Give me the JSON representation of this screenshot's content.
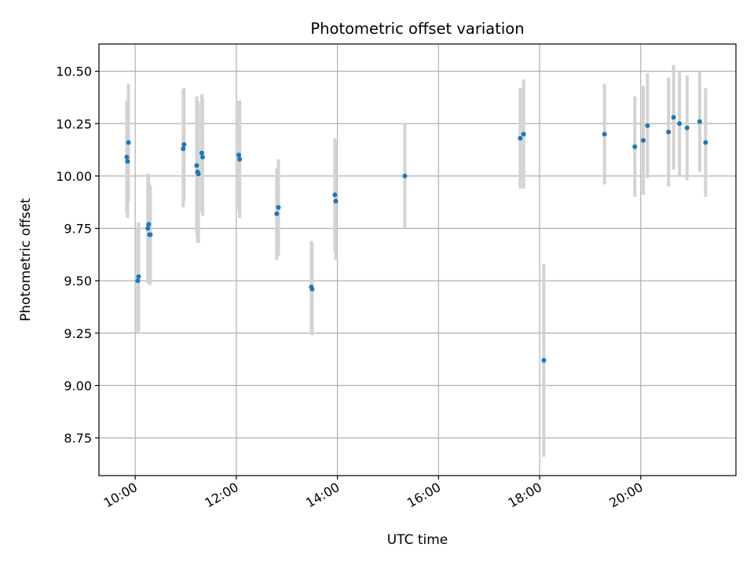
{
  "chart_data": {
    "type": "scatter",
    "title": "Photometric offset variation",
    "xlabel": "UTC time",
    "ylabel": "Photometric offset",
    "x_ticks": [
      "10:00",
      "12:00",
      "14:00",
      "16:00",
      "18:00",
      "20:00"
    ],
    "y_ticks": [
      "8.75",
      "9.00",
      "9.25",
      "9.50",
      "9.75",
      "10.00",
      "10.25",
      "10.50"
    ],
    "xlim": [
      "09:17",
      "21:53"
    ],
    "ylim": [
      8.57,
      10.63
    ],
    "grid": true,
    "colors": {
      "marker": "#1f77b4",
      "errorbar": "#d3d3d3",
      "grid": "#b0b0b0"
    },
    "series": [
      {
        "points": [
          {
            "time": "09:50",
            "y": 10.09,
            "err": 0.27
          },
          {
            "time": "09:51",
            "y": 10.07,
            "err": 0.27
          },
          {
            "time": "09:52",
            "y": 10.16,
            "err": 0.28
          },
          {
            "time": "10:03",
            "y": 9.5,
            "err": 0.25
          },
          {
            "time": "10:04",
            "y": 9.52,
            "err": 0.26
          },
          {
            "time": "10:15",
            "y": 9.75,
            "err": 0.26
          },
          {
            "time": "10:16",
            "y": 9.77,
            "err": 0.24
          },
          {
            "time": "10:17",
            "y": 9.72,
            "err": 0.24
          },
          {
            "time": "10:18",
            "y": 9.72,
            "err": 0.23
          },
          {
            "time": "10:57",
            "y": 10.13,
            "err": 0.28
          },
          {
            "time": "10:58",
            "y": 10.15,
            "err": 0.27
          },
          {
            "time": "11:13",
            "y": 10.05,
            "err": 0.33
          },
          {
            "time": "11:14",
            "y": 10.02,
            "err": 0.34
          },
          {
            "time": "11:15",
            "y": 10.01,
            "err": 0.33
          },
          {
            "time": "11:19",
            "y": 10.11,
            "err": 0.28
          },
          {
            "time": "11:20",
            "y": 10.09,
            "err": 0.28
          },
          {
            "time": "12:03",
            "y": 10.1,
            "err": 0.26
          },
          {
            "time": "12:04",
            "y": 10.08,
            "err": 0.28
          },
          {
            "time": "12:48",
            "y": 9.82,
            "err": 0.22
          },
          {
            "time": "12:50",
            "y": 9.85,
            "err": 0.23
          },
          {
            "time": "13:29",
            "y": 9.47,
            "err": 0.22
          },
          {
            "time": "13:30",
            "y": 9.46,
            "err": 0.22
          },
          {
            "time": "13:57",
            "y": 9.91,
            "err": 0.27
          },
          {
            "time": "13:58",
            "y": 9.88,
            "err": 0.28
          },
          {
            "time": "15:20",
            "y": 10.0,
            "err": 0.25
          },
          {
            "time": "17:37",
            "y": 10.18,
            "err": 0.24
          },
          {
            "time": "17:41",
            "y": 10.2,
            "err": 0.26
          },
          {
            "time": "18:05",
            "y": 9.12,
            "err": 0.46
          },
          {
            "time": "19:17",
            "y": 10.2,
            "err": 0.24
          },
          {
            "time": "19:53",
            "y": 10.14,
            "err": 0.24
          },
          {
            "time": "20:03",
            "y": 10.17,
            "err": 0.26
          },
          {
            "time": "20:08",
            "y": 10.24,
            "err": 0.25
          },
          {
            "time": "20:33",
            "y": 10.21,
            "err": 0.26
          },
          {
            "time": "20:39",
            "y": 10.28,
            "err": 0.25
          },
          {
            "time": "20:46",
            "y": 10.25,
            "err": 0.25
          },
          {
            "time": "20:55",
            "y": 10.23,
            "err": 0.25
          },
          {
            "time": "21:10",
            "y": 10.26,
            "err": 0.24
          },
          {
            "time": "21:17",
            "y": 10.16,
            "err": 0.26
          }
        ]
      }
    ]
  }
}
